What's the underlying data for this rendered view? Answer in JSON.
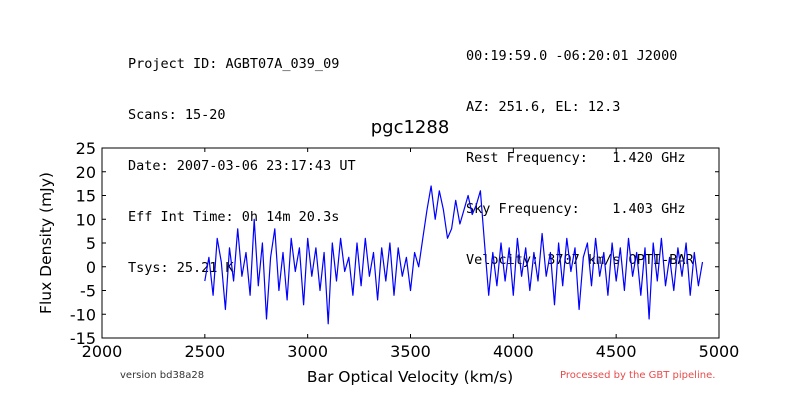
{
  "header": {
    "left": [
      "Project ID: AGBT07A_039_09",
      "Scans: 15-20",
      "Date: 2007-03-06 23:17:43 UT",
      "Eff Int Time: 0h 14m 20.3s",
      "Tsys: 25.21 K"
    ],
    "right": [
      "00:19:59.0 -06:20:01 J2000",
      "AZ: 251.6, EL: 12.3",
      "Rest Frequency:   1.420 GHz",
      "Sky Frequency:    1.403 GHz",
      "Velocity: 3707 km/s OPTI-BAR"
    ]
  },
  "footer": {
    "version": "version bd38a28",
    "pipeline": "Processed by the GBT pipeline."
  },
  "chart_data": {
    "type": "line",
    "title": "pgc1288",
    "xlabel": "Bar Optical Velocity (km/s)",
    "ylabel": "Flux Density (mJy)",
    "xlim": [
      2000,
      5000
    ],
    "ylim": [
      -15,
      25
    ],
    "xticks": [
      2000,
      2500,
      3000,
      3500,
      4000,
      4500,
      5000
    ],
    "yticks": [
      -15,
      -10,
      -5,
      0,
      5,
      10,
      15,
      20,
      25
    ],
    "grid": false,
    "line_color": "#0000ff",
    "series": [
      {
        "points": [
          [
            2500,
            -3
          ],
          [
            2520,
            2
          ],
          [
            2540,
            -6
          ],
          [
            2560,
            6
          ],
          [
            2580,
            1
          ],
          [
            2600,
            -9
          ],
          [
            2620,
            4
          ],
          [
            2640,
            -3
          ],
          [
            2660,
            8
          ],
          [
            2680,
            -2
          ],
          [
            2700,
            3
          ],
          [
            2720,
            -6
          ],
          [
            2740,
            10
          ],
          [
            2760,
            -4
          ],
          [
            2780,
            5
          ],
          [
            2800,
            -11
          ],
          [
            2820,
            2
          ],
          [
            2840,
            8
          ],
          [
            2860,
            -5
          ],
          [
            2880,
            3
          ],
          [
            2900,
            -7
          ],
          [
            2920,
            6
          ],
          [
            2940,
            -1
          ],
          [
            2960,
            4
          ],
          [
            2980,
            -8
          ],
          [
            3000,
            6
          ],
          [
            3020,
            -2
          ],
          [
            3040,
            4
          ],
          [
            3060,
            -5
          ],
          [
            3080,
            3
          ],
          [
            3100,
            -12
          ],
          [
            3120,
            5
          ],
          [
            3140,
            -3
          ],
          [
            3160,
            6
          ],
          [
            3180,
            -1
          ],
          [
            3200,
            2
          ],
          [
            3220,
            -6
          ],
          [
            3240,
            5
          ],
          [
            3260,
            -4
          ],
          [
            3280,
            6
          ],
          [
            3300,
            -2
          ],
          [
            3320,
            3
          ],
          [
            3340,
            -7
          ],
          [
            3360,
            4
          ],
          [
            3380,
            -3
          ],
          [
            3400,
            5
          ],
          [
            3420,
            -6
          ],
          [
            3440,
            4
          ],
          [
            3460,
            -2
          ],
          [
            3480,
            2
          ],
          [
            3500,
            -5
          ],
          [
            3520,
            3
          ],
          [
            3540,
            0
          ],
          [
            3560,
            6
          ],
          [
            3580,
            12
          ],
          [
            3600,
            17
          ],
          [
            3620,
            10
          ],
          [
            3640,
            16
          ],
          [
            3660,
            12
          ],
          [
            3680,
            6
          ],
          [
            3700,
            8
          ],
          [
            3720,
            14
          ],
          [
            3740,
            9
          ],
          [
            3760,
            12
          ],
          [
            3780,
            15
          ],
          [
            3800,
            11
          ],
          [
            3820,
            13
          ],
          [
            3840,
            16
          ],
          [
            3860,
            5
          ],
          [
            3880,
            -6
          ],
          [
            3900,
            3
          ],
          [
            3920,
            -4
          ],
          [
            3940,
            5
          ],
          [
            3960,
            -3
          ],
          [
            3980,
            4
          ],
          [
            4000,
            -6
          ],
          [
            4020,
            6
          ],
          [
            4040,
            -2
          ],
          [
            4060,
            4
          ],
          [
            4080,
            -5
          ],
          [
            4100,
            3
          ],
          [
            4120,
            -3
          ],
          [
            4140,
            7
          ],
          [
            4160,
            -2
          ],
          [
            4180,
            3
          ],
          [
            4200,
            -8
          ],
          [
            4220,
            5
          ],
          [
            4240,
            -4
          ],
          [
            4260,
            6
          ],
          [
            4280,
            -1
          ],
          [
            4300,
            4
          ],
          [
            4320,
            -9
          ],
          [
            4340,
            2
          ],
          [
            4360,
            5
          ],
          [
            4380,
            -4
          ],
          [
            4400,
            6
          ],
          [
            4420,
            -2
          ],
          [
            4440,
            3
          ],
          [
            4460,
            -6
          ],
          [
            4480,
            5
          ],
          [
            4500,
            -3
          ],
          [
            4520,
            4
          ],
          [
            4540,
            -5
          ],
          [
            4560,
            6
          ],
          [
            4580,
            -2
          ],
          [
            4600,
            3
          ],
          [
            4620,
            -6
          ],
          [
            4640,
            4
          ],
          [
            4660,
            -11
          ],
          [
            4680,
            5
          ],
          [
            4700,
            -3
          ],
          [
            4720,
            6
          ],
          [
            4740,
            -4
          ],
          [
            4760,
            2
          ],
          [
            4780,
            -5
          ],
          [
            4800,
            4
          ],
          [
            4820,
            -2
          ],
          [
            4840,
            5
          ],
          [
            4860,
            -6
          ],
          [
            4880,
            3
          ],
          [
            4900,
            -4
          ],
          [
            4920,
            1
          ]
        ]
      }
    ]
  }
}
